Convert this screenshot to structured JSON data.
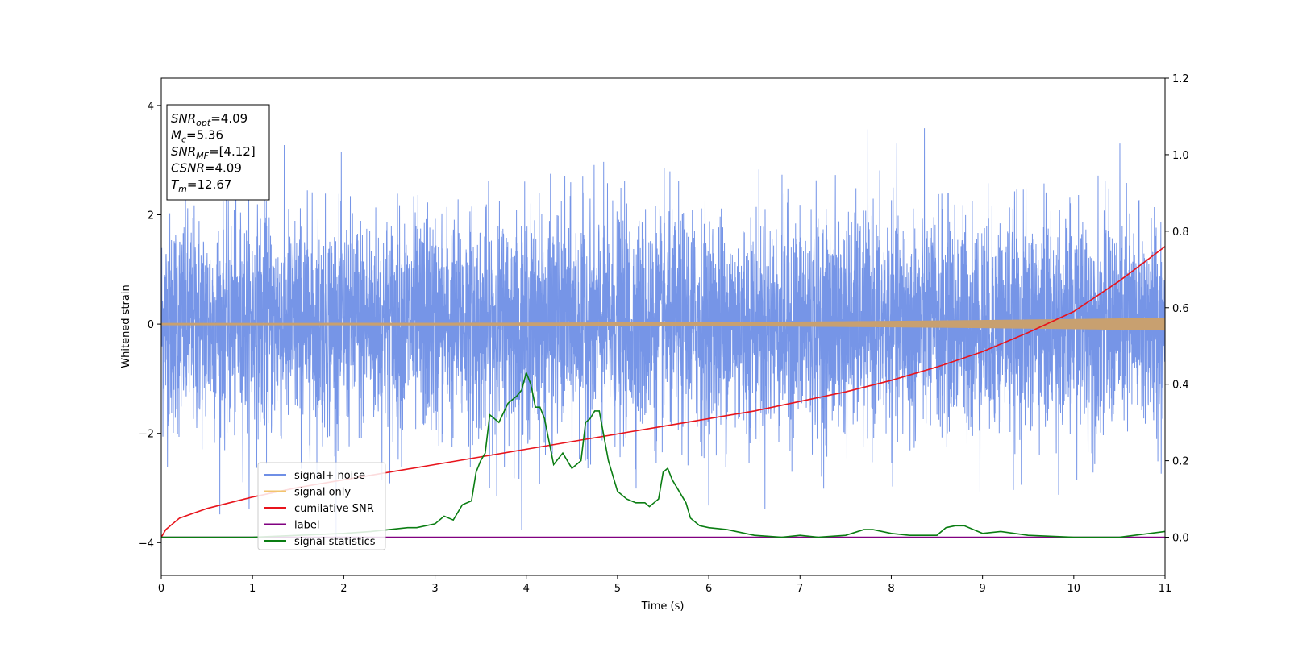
{
  "chart_data": {
    "type": "line",
    "xlabel": "Time (s)",
    "ylabel": "Whitened strain",
    "xlim": [
      0,
      11
    ],
    "ylim_left": [
      -4.6,
      4.5
    ],
    "ylim_right": [
      -0.1,
      1.2
    ],
    "x_ticks": [
      "0",
      "1",
      "2",
      "3",
      "4",
      "5",
      "6",
      "7",
      "8",
      "9",
      "10",
      "11"
    ],
    "y_ticks_left": [
      "4",
      "2",
      "0",
      "−2",
      "−4"
    ],
    "y_ticks_right": [
      "1.2",
      "1.0",
      "0.8",
      "0.6",
      "0.4",
      "0.2",
      "0.0"
    ],
    "annotation_lines": [
      {
        "var": "SNR",
        "sub": "opt",
        "value": "=4.09"
      },
      {
        "var": "M",
        "sub": "c",
        "value": "=5.36"
      },
      {
        "var": "SNR",
        "sub": "MF",
        "value": "=[4.12]"
      },
      {
        "var": "CSNR",
        "sub": "",
        "value": "=4.09"
      },
      {
        "var": "T",
        "sub": "m",
        "value": "=12.67"
      }
    ],
    "legend": {
      "placement": "lower-left",
      "entries": [
        {
          "label": "signal+ noise",
          "color": "#6f8fe6"
        },
        {
          "label": "signal only",
          "color": "#f2c46d"
        },
        {
          "label": "cumilative SNR",
          "color": "#e8141c"
        },
        {
          "label": "label",
          "color": "#800080"
        },
        {
          "label": "signal statistics",
          "color": "#0a7d12"
        }
      ]
    },
    "series": [
      {
        "name": "signal+ noise",
        "axis": "left",
        "color": "#6f8fe6",
        "description_type": "noise",
        "std": 1.0,
        "x_range": [
          0,
          11
        ]
      },
      {
        "name": "signal only",
        "axis": "left",
        "color": "#c8a070",
        "description_type": "chirp-envelope",
        "amplitude_start": 0.015,
        "amplitude_end": 0.11,
        "x_range": [
          0,
          11
        ]
      },
      {
        "name": "cumilative SNR",
        "axis": "right",
        "color": "#e8141c",
        "x": [
          0,
          0.05,
          0.2,
          0.5,
          1,
          1.5,
          2,
          2.5,
          3,
          3.5,
          4,
          4.5,
          5,
          5.5,
          6,
          6.5,
          7,
          7.5,
          8,
          8.5,
          9,
          9.5,
          10,
          10.5,
          11
        ],
        "values": [
          0.0,
          0.02,
          0.05,
          0.075,
          0.105,
          0.13,
          0.15,
          0.17,
          0.19,
          0.21,
          0.23,
          0.25,
          0.27,
          0.29,
          0.31,
          0.33,
          0.355,
          0.38,
          0.41,
          0.445,
          0.485,
          0.535,
          0.59,
          0.67,
          0.76
        ]
      },
      {
        "name": "label",
        "axis": "right",
        "color": "#800080",
        "x": [
          0,
          11
        ],
        "values": [
          0.0,
          0.0
        ]
      },
      {
        "name": "signal statistics",
        "axis": "right",
        "color": "#0a7d12",
        "x": [
          0,
          0.5,
          1,
          1.5,
          2,
          2.3,
          2.5,
          2.7,
          2.8,
          3.0,
          3.1,
          3.2,
          3.3,
          3.4,
          3.45,
          3.5,
          3.55,
          3.6,
          3.7,
          3.8,
          3.9,
          3.95,
          4.0,
          4.05,
          4.1,
          4.15,
          4.2,
          4.3,
          4.4,
          4.5,
          4.6,
          4.65,
          4.7,
          4.75,
          4.8,
          4.9,
          5.0,
          5.1,
          5.2,
          5.3,
          5.35,
          5.4,
          5.45,
          5.5,
          5.55,
          5.6,
          5.65,
          5.7,
          5.75,
          5.8,
          5.9,
          6.0,
          6.2,
          6.5,
          6.8,
          7.0,
          7.2,
          7.5,
          7.7,
          7.8,
          8.0,
          8.2,
          8.5,
          8.6,
          8.7,
          8.8,
          9.0,
          9.2,
          9.5,
          10.0,
          10.5,
          11.0
        ],
        "values": [
          0.0,
          0.0,
          0.0,
          0.005,
          0.01,
          0.015,
          0.02,
          0.025,
          0.025,
          0.035,
          0.055,
          0.045,
          0.085,
          0.095,
          0.17,
          0.2,
          0.22,
          0.32,
          0.3,
          0.35,
          0.37,
          0.385,
          0.43,
          0.4,
          0.34,
          0.34,
          0.31,
          0.19,
          0.22,
          0.18,
          0.2,
          0.3,
          0.31,
          0.33,
          0.33,
          0.2,
          0.12,
          0.1,
          0.09,
          0.09,
          0.08,
          0.09,
          0.1,
          0.17,
          0.18,
          0.15,
          0.13,
          0.11,
          0.09,
          0.05,
          0.03,
          0.025,
          0.02,
          0.005,
          0.0,
          0.005,
          0.0,
          0.005,
          0.02,
          0.02,
          0.01,
          0.005,
          0.005,
          0.025,
          0.03,
          0.03,
          0.01,
          0.015,
          0.005,
          0.0,
          0.0,
          0.015
        ]
      }
    ]
  }
}
